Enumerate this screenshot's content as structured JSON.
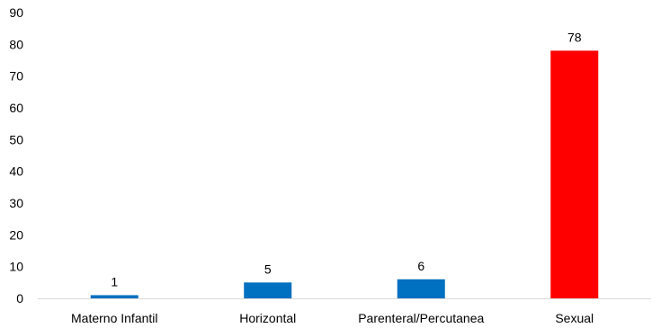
{
  "chart_data": {
    "type": "bar",
    "title": "",
    "xlabel": "",
    "ylabel": "",
    "categories": [
      "Materno Infantil",
      "Horizontal",
      "Parenteral/Percutanea",
      "Sexual"
    ],
    "values": [
      1,
      5,
      6,
      78
    ],
    "data_labels": [
      "1",
      "5",
      "6",
      "78"
    ],
    "bar_colors": [
      "#0070C0",
      "#0070C0",
      "#0070C0",
      "#FF0000"
    ],
    "ylim": [
      0,
      90
    ],
    "yticks": [
      0,
      10,
      20,
      30,
      40,
      50,
      60,
      70,
      80,
      90
    ],
    "ytick_labels": [
      "0",
      "10",
      "20",
      "30",
      "40",
      "50",
      "60",
      "70",
      "80",
      "90"
    ],
    "grid": false,
    "legend": "none",
    "axis_color": "#D9D9D9"
  }
}
